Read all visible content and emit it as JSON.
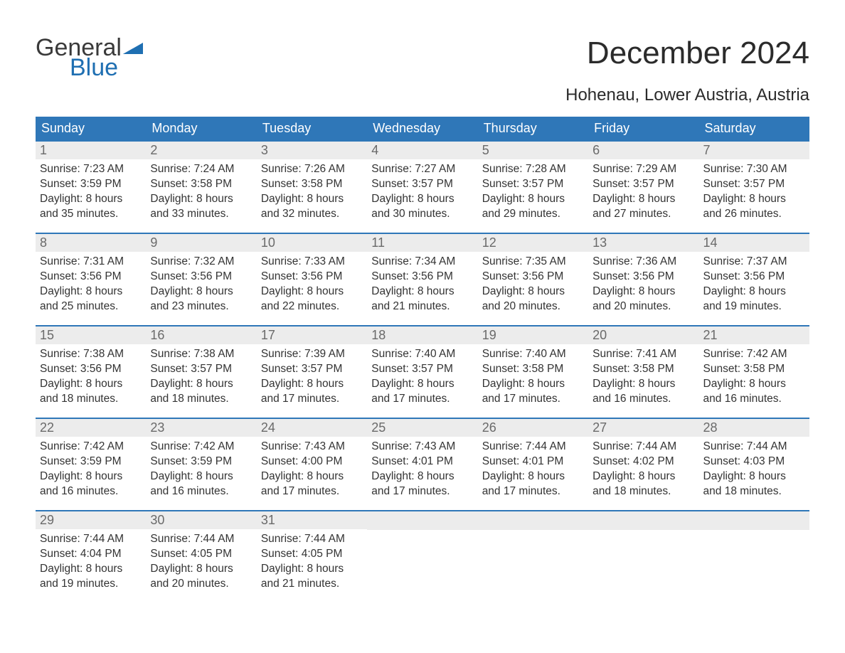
{
  "colors": {
    "header_bg": "#2f77b8",
    "header_text": "#ffffff",
    "daynum_bg": "#ececec",
    "daynum_text": "#6a6a6a",
    "body_text": "#333333",
    "title_text": "#2b2b2b",
    "logo_gray": "#3a3a3a",
    "logo_blue": "#1f6fb2",
    "row_border": "#2f77b8",
    "page_bg": "#ffffff"
  },
  "typography": {
    "title_fontsize": 44,
    "location_fontsize": 24,
    "dow_fontsize": 18,
    "daynum_fontsize": 18,
    "body_fontsize": 15.5,
    "logo_fontsize": 34
  },
  "logo": {
    "top": "General",
    "bottom": "Blue"
  },
  "title": "December 2024",
  "location": "Hohenau, Lower Austria, Austria",
  "dow": [
    "Sunday",
    "Monday",
    "Tuesday",
    "Wednesday",
    "Thursday",
    "Friday",
    "Saturday"
  ],
  "weeks": [
    [
      {
        "n": "1",
        "sr": "Sunrise: 7:23 AM",
        "ss": "Sunset: 3:59 PM",
        "d1": "Daylight: 8 hours",
        "d2": "and 35 minutes."
      },
      {
        "n": "2",
        "sr": "Sunrise: 7:24 AM",
        "ss": "Sunset: 3:58 PM",
        "d1": "Daylight: 8 hours",
        "d2": "and 33 minutes."
      },
      {
        "n": "3",
        "sr": "Sunrise: 7:26 AM",
        "ss": "Sunset: 3:58 PM",
        "d1": "Daylight: 8 hours",
        "d2": "and 32 minutes."
      },
      {
        "n": "4",
        "sr": "Sunrise: 7:27 AM",
        "ss": "Sunset: 3:57 PM",
        "d1": "Daylight: 8 hours",
        "d2": "and 30 minutes."
      },
      {
        "n": "5",
        "sr": "Sunrise: 7:28 AM",
        "ss": "Sunset: 3:57 PM",
        "d1": "Daylight: 8 hours",
        "d2": "and 29 minutes."
      },
      {
        "n": "6",
        "sr": "Sunrise: 7:29 AM",
        "ss": "Sunset: 3:57 PM",
        "d1": "Daylight: 8 hours",
        "d2": "and 27 minutes."
      },
      {
        "n": "7",
        "sr": "Sunrise: 7:30 AM",
        "ss": "Sunset: 3:57 PM",
        "d1": "Daylight: 8 hours",
        "d2": "and 26 minutes."
      }
    ],
    [
      {
        "n": "8",
        "sr": "Sunrise: 7:31 AM",
        "ss": "Sunset: 3:56 PM",
        "d1": "Daylight: 8 hours",
        "d2": "and 25 minutes."
      },
      {
        "n": "9",
        "sr": "Sunrise: 7:32 AM",
        "ss": "Sunset: 3:56 PM",
        "d1": "Daylight: 8 hours",
        "d2": "and 23 minutes."
      },
      {
        "n": "10",
        "sr": "Sunrise: 7:33 AM",
        "ss": "Sunset: 3:56 PM",
        "d1": "Daylight: 8 hours",
        "d2": "and 22 minutes."
      },
      {
        "n": "11",
        "sr": "Sunrise: 7:34 AM",
        "ss": "Sunset: 3:56 PM",
        "d1": "Daylight: 8 hours",
        "d2": "and 21 minutes."
      },
      {
        "n": "12",
        "sr": "Sunrise: 7:35 AM",
        "ss": "Sunset: 3:56 PM",
        "d1": "Daylight: 8 hours",
        "d2": "and 20 minutes."
      },
      {
        "n": "13",
        "sr": "Sunrise: 7:36 AM",
        "ss": "Sunset: 3:56 PM",
        "d1": "Daylight: 8 hours",
        "d2": "and 20 minutes."
      },
      {
        "n": "14",
        "sr": "Sunrise: 7:37 AM",
        "ss": "Sunset: 3:56 PM",
        "d1": "Daylight: 8 hours",
        "d2": "and 19 minutes."
      }
    ],
    [
      {
        "n": "15",
        "sr": "Sunrise: 7:38 AM",
        "ss": "Sunset: 3:56 PM",
        "d1": "Daylight: 8 hours",
        "d2": "and 18 minutes."
      },
      {
        "n": "16",
        "sr": "Sunrise: 7:38 AM",
        "ss": "Sunset: 3:57 PM",
        "d1": "Daylight: 8 hours",
        "d2": "and 18 minutes."
      },
      {
        "n": "17",
        "sr": "Sunrise: 7:39 AM",
        "ss": "Sunset: 3:57 PM",
        "d1": "Daylight: 8 hours",
        "d2": "and 17 minutes."
      },
      {
        "n": "18",
        "sr": "Sunrise: 7:40 AM",
        "ss": "Sunset: 3:57 PM",
        "d1": "Daylight: 8 hours",
        "d2": "and 17 minutes."
      },
      {
        "n": "19",
        "sr": "Sunrise: 7:40 AM",
        "ss": "Sunset: 3:58 PM",
        "d1": "Daylight: 8 hours",
        "d2": "and 17 minutes."
      },
      {
        "n": "20",
        "sr": "Sunrise: 7:41 AM",
        "ss": "Sunset: 3:58 PM",
        "d1": "Daylight: 8 hours",
        "d2": "and 16 minutes."
      },
      {
        "n": "21",
        "sr": "Sunrise: 7:42 AM",
        "ss": "Sunset: 3:58 PM",
        "d1": "Daylight: 8 hours",
        "d2": "and 16 minutes."
      }
    ],
    [
      {
        "n": "22",
        "sr": "Sunrise: 7:42 AM",
        "ss": "Sunset: 3:59 PM",
        "d1": "Daylight: 8 hours",
        "d2": "and 16 minutes."
      },
      {
        "n": "23",
        "sr": "Sunrise: 7:42 AM",
        "ss": "Sunset: 3:59 PM",
        "d1": "Daylight: 8 hours",
        "d2": "and 16 minutes."
      },
      {
        "n": "24",
        "sr": "Sunrise: 7:43 AM",
        "ss": "Sunset: 4:00 PM",
        "d1": "Daylight: 8 hours",
        "d2": "and 17 minutes."
      },
      {
        "n": "25",
        "sr": "Sunrise: 7:43 AM",
        "ss": "Sunset: 4:01 PM",
        "d1": "Daylight: 8 hours",
        "d2": "and 17 minutes."
      },
      {
        "n": "26",
        "sr": "Sunrise: 7:44 AM",
        "ss": "Sunset: 4:01 PM",
        "d1": "Daylight: 8 hours",
        "d2": "and 17 minutes."
      },
      {
        "n": "27",
        "sr": "Sunrise: 7:44 AM",
        "ss": "Sunset: 4:02 PM",
        "d1": "Daylight: 8 hours",
        "d2": "and 18 minutes."
      },
      {
        "n": "28",
        "sr": "Sunrise: 7:44 AM",
        "ss": "Sunset: 4:03 PM",
        "d1": "Daylight: 8 hours",
        "d2": "and 18 minutes."
      }
    ],
    [
      {
        "n": "29",
        "sr": "Sunrise: 7:44 AM",
        "ss": "Sunset: 4:04 PM",
        "d1": "Daylight: 8 hours",
        "d2": "and 19 minutes."
      },
      {
        "n": "30",
        "sr": "Sunrise: 7:44 AM",
        "ss": "Sunset: 4:05 PM",
        "d1": "Daylight: 8 hours",
        "d2": "and 20 minutes."
      },
      {
        "n": "31",
        "sr": "Sunrise: 7:44 AM",
        "ss": "Sunset: 4:05 PM",
        "d1": "Daylight: 8 hours",
        "d2": "and 21 minutes."
      },
      null,
      null,
      null,
      null
    ]
  ]
}
